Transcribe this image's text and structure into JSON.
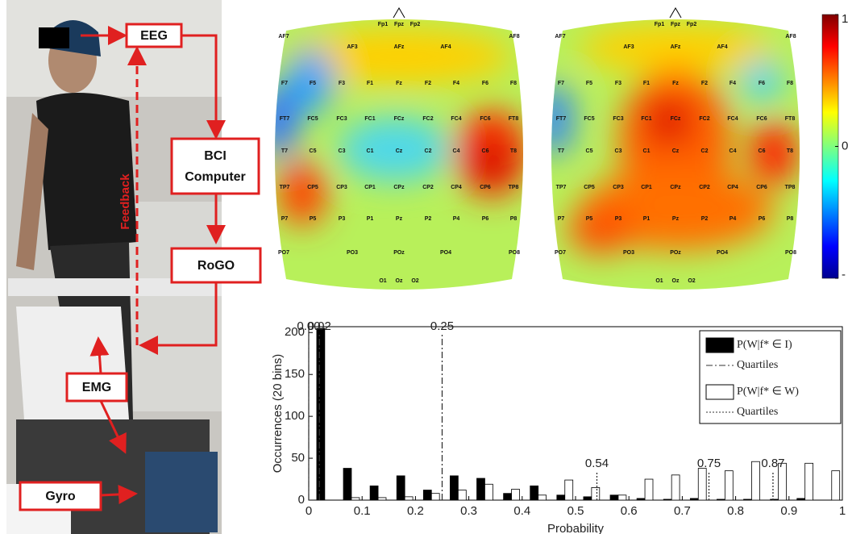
{
  "photo": {
    "labels": {
      "eeg": "EEG",
      "bci": [
        "BCI",
        "Computer"
      ],
      "rogo": "RoGO",
      "emg": "EMG",
      "gyro": "Gyro",
      "feedback": "Feedback"
    }
  },
  "topomaps": {
    "electrodes": [
      [
        "Fp1",
        "Fpz",
        "Fp2"
      ],
      [
        "AF7",
        "AF3",
        "AFz",
        "AF4",
        "AF8"
      ],
      [
        "F7",
        "F5",
        "F3",
        "F1",
        "Fz",
        "F2",
        "F4",
        "F6",
        "F8"
      ],
      [
        "FT7",
        "FC5",
        "FC3",
        "FC1",
        "FCz",
        "FC2",
        "FC4",
        "FC6",
        "FT8"
      ],
      [
        "T7",
        "C5",
        "C3",
        "C1",
        "Cz",
        "C2",
        "C4",
        "C6",
        "T8"
      ],
      [
        "TP7",
        "CP5",
        "CP3",
        "CP1",
        "CPz",
        "CP2",
        "CP4",
        "CP6",
        "TP8"
      ],
      [
        "P7",
        "P5",
        "P3",
        "P1",
        "Pz",
        "P2",
        "P4",
        "P6",
        "P8"
      ],
      [
        "PO7",
        "PO3",
        "POz",
        "PO4",
        "PO8"
      ],
      [
        "O1",
        "Oz",
        "O2"
      ]
    ],
    "colorbar": {
      "lim": [
        -1,
        1
      ],
      "ticks": [
        1,
        0,
        {
          "value": -1,
          "label": "-"
        }
      ]
    }
  },
  "chart_data": {
    "type": "histogram",
    "xlabel": "Probability",
    "ylabel": "Occurrences (20 bins)",
    "bins": [
      0,
      0.05,
      0.1,
      0.15,
      0.2,
      0.25,
      0.3,
      0.35,
      0.4,
      0.45,
      0.5,
      0.55,
      0.6,
      0.65,
      0.7,
      0.75,
      0.8,
      0.85,
      0.9,
      0.95,
      1
    ],
    "series": [
      {
        "name": "P(W|f* ∈ I)",
        "color": "#000000",
        "values": [
          205,
          38,
          17,
          29,
          12,
          29,
          26,
          8,
          17,
          6,
          4,
          6,
          2,
          1,
          2,
          1,
          1,
          1,
          2,
          0
        ],
        "quartile_name": "Quartiles",
        "quartiles": [
          {
            "value": 0,
            "label": "0.00"
          },
          0.02,
          0.25
        ]
      },
      {
        "name": "P(W|f* ∈ W)",
        "color": "#ffffff",
        "values": [
          0,
          3,
          3,
          4,
          8,
          12,
          19,
          13,
          6,
          24,
          15,
          6,
          25,
          30,
          38,
          35,
          46,
          44,
          44,
          35
        ],
        "quartile_name": "Quartiles",
        "quartiles": [
          0.54,
          0.75,
          0.87
        ]
      }
    ],
    "xlim": [
      0,
      1
    ],
    "ylim": [
      0,
      207
    ],
    "xticks": [
      0,
      0.1,
      0.2,
      0.3,
      0.4,
      0.5,
      0.6,
      0.7,
      0.8,
      0.9,
      1
    ],
    "yticks": [
      0,
      50,
      100,
      150,
      200
    ]
  }
}
